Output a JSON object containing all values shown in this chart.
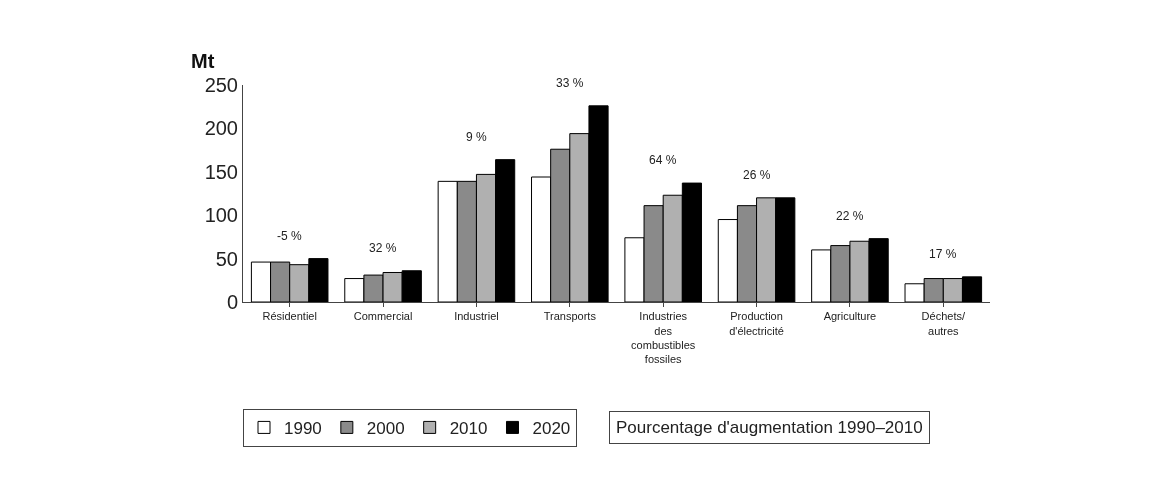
{
  "chart_data": {
    "type": "bar",
    "ylabel": "Mt",
    "categories": [
      "Résidentiel",
      "Commercial",
      "Industriel",
      "Transports",
      "Industries des combustibles fossiles",
      "Production d'électricité",
      "Agriculture",
      "Déchets/ autres"
    ],
    "series": [
      {
        "name": "1990",
        "color": "#ffffff",
        "values": [
          46,
          27,
          139,
          144,
          74,
          95,
          60,
          21
        ]
      },
      {
        "name": "2000",
        "color": "#8a8a8a",
        "values": [
          46,
          31,
          139,
          176,
          111,
          111,
          65,
          27
        ]
      },
      {
        "name": "2010",
        "color": "#b0b0b0",
        "values": [
          43,
          34,
          147,
          194,
          123,
          120,
          70,
          27
        ]
      },
      {
        "name": "2020",
        "color": "#000000",
        "values": [
          50,
          36,
          164,
          226,
          137,
          120,
          73,
          29
        ]
      }
    ],
    "ylim": [
      0,
      250
    ],
    "yticks": [
      0,
      50,
      100,
      150,
      200,
      250
    ],
    "grid": false,
    "legend": "bottom",
    "annotations": [
      "-5 %",
      "32 %",
      "9 %",
      "33 %",
      "64 %",
      "26 %",
      "22 %",
      "17 %",
      "Pourcentage d'augmentation 1990–2010"
    ]
  }
}
